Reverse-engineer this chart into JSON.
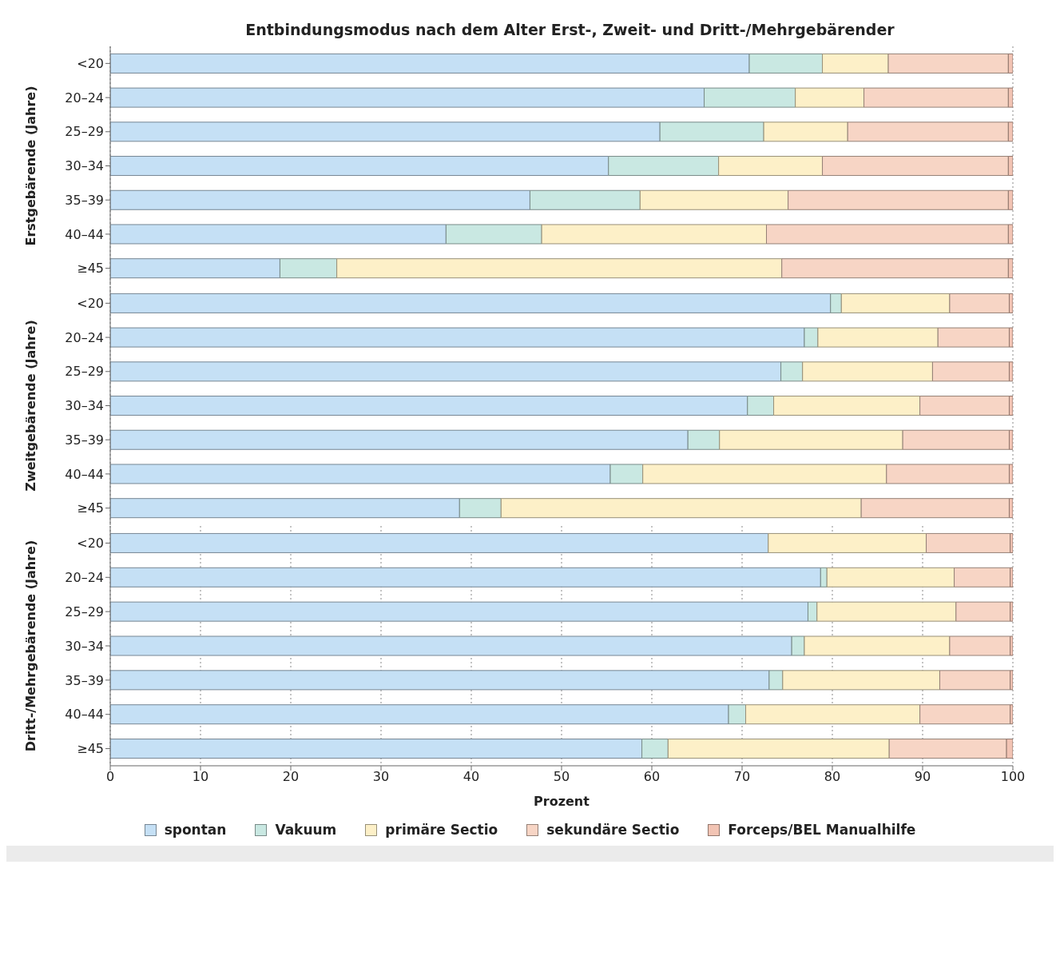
{
  "chart_data": [
    {
      "type": "bar",
      "title": "Entbindungsmodus nach dem Alter Erst-, Zweit- und Dritt-/Mehrgebärender",
      "ylabel": "Erstgebärende (Jahre)",
      "orientation": "horizontal",
      "stacked": true,
      "categories": [
        "<20",
        "20–24",
        "25–29",
        "30–34",
        "35–39",
        "40–44",
        "≥45"
      ],
      "xlim": [
        0,
        100
      ],
      "xticks": [
        0,
        10,
        20,
        30,
        40,
        50,
        60,
        70,
        80,
        90,
        100
      ],
      "grid": "x",
      "tick_labels": "y",
      "series": [
        {
          "color": "#c5e0f5",
          "values": [
            70.8,
            65.8,
            60.9,
            55.2,
            46.5,
            37.2,
            18.8
          ]
        },
        {
          "color": "#c9e8e2",
          "values": [
            8.1,
            10.1,
            11.5,
            12.2,
            12.2,
            10.6,
            6.3
          ]
        },
        {
          "color": "#fdf0c8",
          "values": [
            7.3,
            7.6,
            9.3,
            11.5,
            16.4,
            24.9,
            49.3
          ]
        },
        {
          "color": "#f7d5c5",
          "values": [
            13.3,
            16.0,
            17.8,
            20.6,
            24.4,
            26.8,
            25.1
          ]
        },
        {
          "color": "#f2c4b4",
          "values": [
            0.5,
            0.5,
            0.5,
            0.5,
            0.5,
            0.5,
            0.5
          ]
        }
      ]
    },
    {
      "type": "bar",
      "ylabel": "Zweitgebärende (Jahre)",
      "orientation": "horizontal",
      "stacked": true,
      "categories": [
        "<20",
        "20–24",
        "25–29",
        "30–34",
        "35–39",
        "40–44",
        "≥45"
      ],
      "xlim": [
        0,
        100
      ],
      "xticks": [
        0,
        10,
        20,
        30,
        40,
        50,
        60,
        70,
        80,
        90,
        100
      ],
      "grid": "x",
      "tick_labels": "y",
      "series": [
        {
          "color": "#c5e0f5",
          "values": [
            79.8,
            76.9,
            74.3,
            70.6,
            64.0,
            55.4,
            38.7
          ]
        },
        {
          "color": "#c9e8e2",
          "values": [
            1.2,
            1.5,
            2.4,
            2.9,
            3.5,
            3.6,
            4.6
          ]
        },
        {
          "color": "#fdf0c8",
          "values": [
            12.0,
            13.3,
            14.4,
            16.2,
            20.3,
            27.0,
            39.9
          ]
        },
        {
          "color": "#f7d5c5",
          "values": [
            6.6,
            7.9,
            8.5,
            9.9,
            11.8,
            13.6,
            16.4
          ]
        },
        {
          "color": "#f2c4b4",
          "values": [
            0.4,
            0.4,
            0.4,
            0.4,
            0.4,
            0.4,
            0.4
          ]
        }
      ]
    },
    {
      "type": "bar",
      "ylabel": "Dritt-/Mehrgebärende (Jahre)",
      "xlabel": "Prozent",
      "orientation": "horizontal",
      "stacked": true,
      "categories": [
        "<20",
        "20–24",
        "25–29",
        "30–34",
        "35–39",
        "40–44",
        "≥45"
      ],
      "xlim": [
        0,
        100
      ],
      "xticks": [
        0,
        10,
        20,
        30,
        40,
        50,
        60,
        70,
        80,
        90,
        100
      ],
      "grid": "x",
      "legend": "bottom",
      "series": [
        {
          "name": "spontan",
          "color": "#c5e0f5",
          "values": [
            72.9,
            78.7,
            77.3,
            75.5,
            73.0,
            68.5,
            58.9
          ]
        },
        {
          "name": "Vakuum",
          "color": "#c9e8e2",
          "values": [
            0,
            0.7,
            1.0,
            1.4,
            1.5,
            1.9,
            2.9
          ]
        },
        {
          "name": "primäre Sectio",
          "color": "#fdf0c8",
          "values": [
            17.5,
            14.1,
            15.4,
            16.1,
            17.4,
            19.3,
            24.5
          ]
        },
        {
          "name": "sekundäre Sectio",
          "color": "#f7d5c5",
          "values": [
            9.3,
            6.2,
            6.0,
            6.7,
            7.8,
            10.0,
            13.0
          ]
        },
        {
          "name": "Forceps/BEL Manualhilfe",
          "color": "#f2c4b4",
          "values": [
            0.3,
            0.3,
            0.3,
            0.3,
            0.3,
            0.7,
            0.7
          ]
        }
      ]
    }
  ]
}
